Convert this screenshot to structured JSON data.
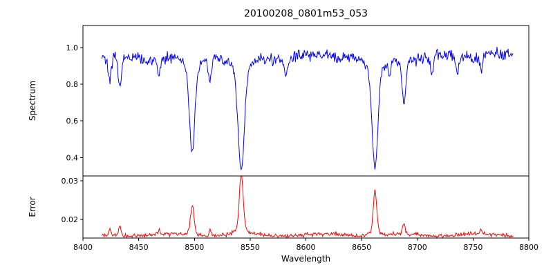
{
  "figure": {
    "background": "#ffffff",
    "axis_color": "#000000"
  },
  "chart_data": {
    "type": "line",
    "title": "20100208_0801m53_053",
    "xlabel": "Wavelength",
    "xlim": [
      8400,
      8800
    ],
    "xticks": [
      8400,
      8450,
      8500,
      8550,
      8600,
      8650,
      8700,
      8750,
      8800
    ],
    "x_data_start": 8417,
    "x_data_end": 8786,
    "n_points": 560,
    "noise_seed": 42,
    "legend": "none",
    "grid": false,
    "panels": [
      {
        "name": "spectrum",
        "ylabel": "Spectrum",
        "line_color": "#0000ff",
        "ylim": [
          0.3,
          1.12
        ],
        "yticks": [
          0.4,
          0.6,
          0.8,
          1.0
        ],
        "ytick_labels": [
          "0.4",
          "0.6",
          "0.8",
          "1.0"
        ],
        "continuum_level": 0.95,
        "noise_amplitude": 0.055,
        "absorption_lines": [
          {
            "center": 8424,
            "min_value": 0.82,
            "width": 1.4
          },
          {
            "center": 8433,
            "min_value": 0.78,
            "width": 1.6
          },
          {
            "center": 8468,
            "min_value": 0.85,
            "width": 1.4
          },
          {
            "center": 8498,
            "min_value": 0.42,
            "width": 2.4
          },
          {
            "center": 8514,
            "min_value": 0.83,
            "width": 1.4
          },
          {
            "center": 8542,
            "min_value": 0.33,
            "width": 2.8
          },
          {
            "center": 8582,
            "min_value": 0.86,
            "width": 1.3
          },
          {
            "center": 8662,
            "min_value": 0.34,
            "width": 2.6
          },
          {
            "center": 8675,
            "min_value": 0.87,
            "width": 1.2
          },
          {
            "center": 8688,
            "min_value": 0.7,
            "width": 1.6
          },
          {
            "center": 8713,
            "min_value": 0.86,
            "width": 1.3
          },
          {
            "center": 8736,
            "min_value": 0.85,
            "width": 1.3
          },
          {
            "center": 8757,
            "min_value": 0.88,
            "width": 1.2
          }
        ]
      },
      {
        "name": "error",
        "ylabel": "Error",
        "line_color": "#ff0000",
        "ylim": [
          0.0152,
          0.0312
        ],
        "yticks": [
          0.02,
          0.03
        ],
        "ytick_labels": [
          "0.02",
          "0.03"
        ],
        "baseline_level": 0.016,
        "noise_amplitude": 0.0009,
        "peaks": [
          {
            "center": 8424,
            "max_value": 0.0175,
            "width": 1.0
          },
          {
            "center": 8433,
            "max_value": 0.0186,
            "width": 1.2
          },
          {
            "center": 8468,
            "max_value": 0.017,
            "width": 1.0
          },
          {
            "center": 8498,
            "max_value": 0.023,
            "width": 1.5
          },
          {
            "center": 8514,
            "max_value": 0.0173,
            "width": 1.0
          },
          {
            "center": 8542,
            "max_value": 0.0301,
            "width": 1.7
          },
          {
            "center": 8662,
            "max_value": 0.0267,
            "width": 1.5
          },
          {
            "center": 8688,
            "max_value": 0.0186,
            "width": 1.2
          },
          {
            "center": 8757,
            "max_value": 0.0172,
            "width": 1.0
          }
        ]
      }
    ]
  }
}
